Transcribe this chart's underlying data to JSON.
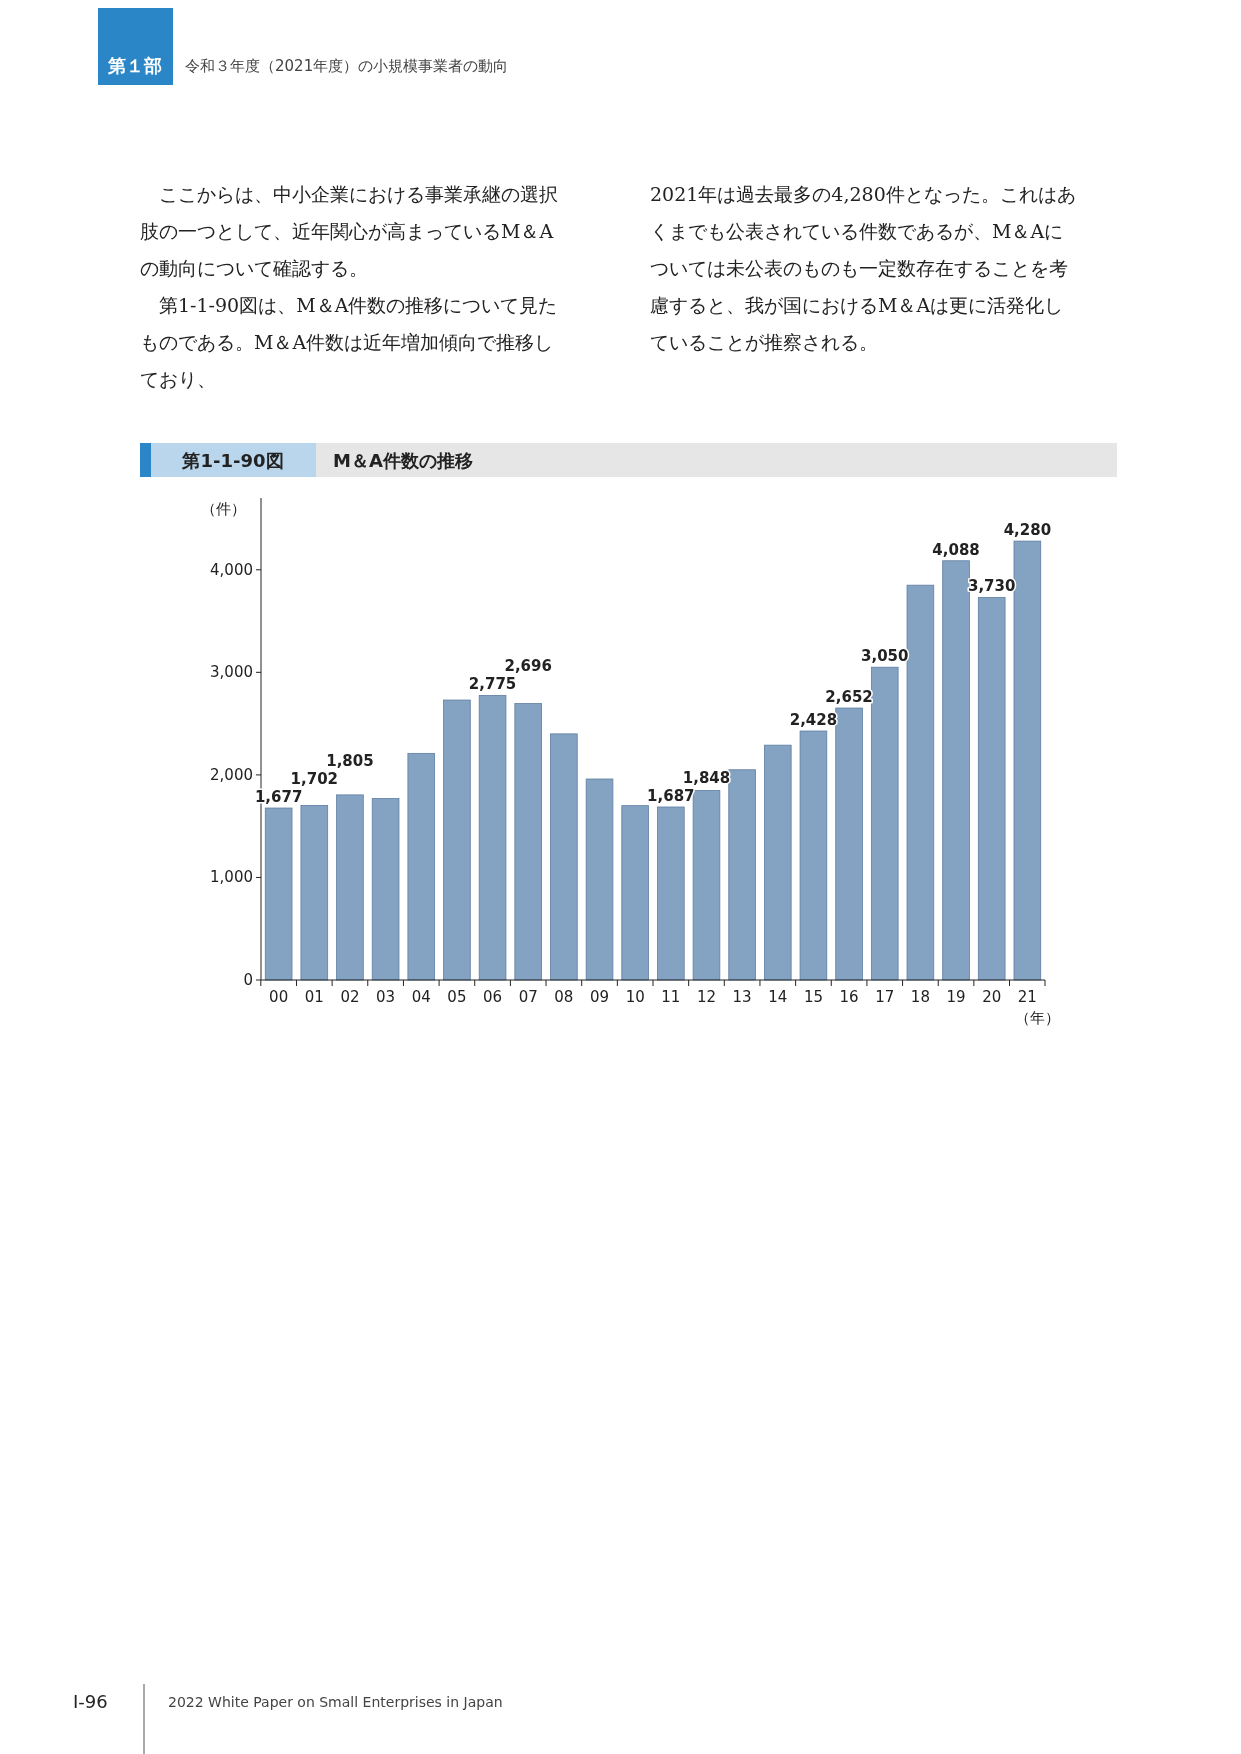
{
  "chart_data": {
    "type": "bar",
    "title": "M＆A件数の推移",
    "subtitle": "第1-1-90図",
    "ylabel": "（件）",
    "xlabel": "（年）",
    "categories": [
      "00",
      "01",
      "02",
      "03",
      "04",
      "05",
      "06",
      "07",
      "08",
      "09",
      "10",
      "11",
      "12",
      "13",
      "14",
      "15",
      "16",
      "17",
      "18",
      "19",
      "20",
      "21"
    ],
    "values": [
      1677,
      1702,
      1805,
      1770,
      2210,
      2730,
      2775,
      2696,
      2400,
      1960,
      1700,
      1687,
      1848,
      2050,
      2290,
      2428,
      2652,
      3050,
      3850,
      4088,
      3730,
      4280
    ],
    "value_labels": [
      "1,677",
      "1,702",
      "1,805",
      null,
      null,
      null,
      "2,775",
      "2,696",
      null,
      null,
      null,
      "1,687",
      "1,848",
      null,
      null,
      "2,428",
      "2,652",
      "3,050",
      null,
      "4,088",
      "3,730",
      "4,280"
    ],
    "color": "#84a2c2",
    "ylim": [
      0,
      4700
    ],
    "yticks": [
      {
        "value": 0,
        "label": "0"
      },
      {
        "value": 1000,
        "label": "1,000"
      },
      {
        "value": 2000,
        "label": "2,000"
      },
      {
        "value": 3000,
        "label": "3,000"
      },
      {
        "value": 4000,
        "label": "4,000"
      }
    ],
    "grid": false,
    "annotations": [
      "第１部",
      "令和３年度（2021年度）の小規模事業者の動向",
      "ここからは、中小企業における事業承継の選択肢の一つとして、近年関心が高まっているM＆Aの動向について確認する。",
      "第1-1-90図は、M＆A件数の推移について見たものである。M＆A件数は近年増加傾向で推移しており、",
      "2021年は過去最多の4,280件となった。これはあくまでも公表されている件数であるが、M＆Aについては未公表のものも一定数存在することを考慮すると、我が国におけるM＆Aは更に活発化していることが推察される。",
      "Ⅰ-96",
      "2022 White Paper on Small Enterprises in Japan"
    ]
  }
}
